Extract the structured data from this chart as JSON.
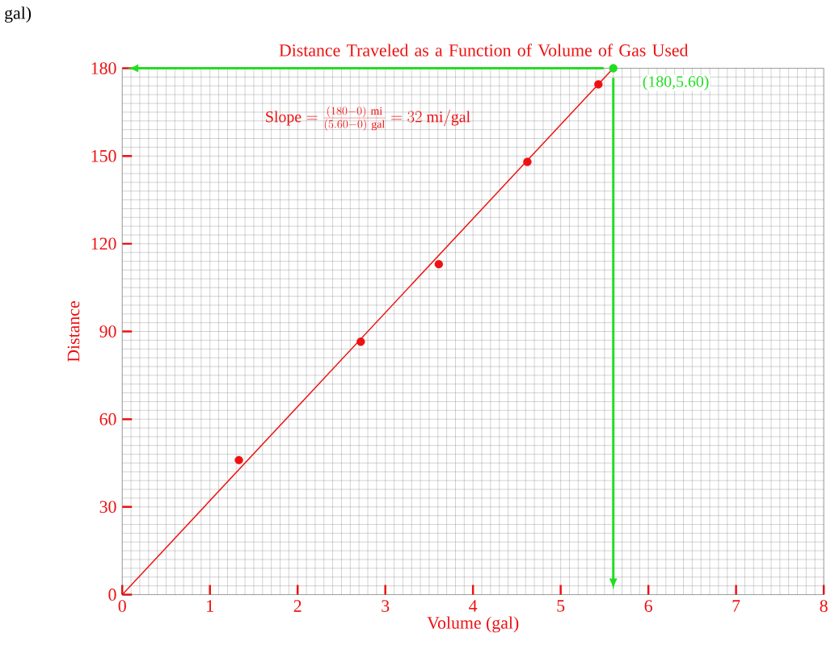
{
  "chart_data": {
    "type": "scatter",
    "title": "Distance Traveled  as a Function of Volume of Gas Used",
    "xlabel": "Volume (gal)",
    "ylabel": "Distance",
    "xlim": [
      0,
      8
    ],
    "xticks": [
      0,
      1,
      2,
      3,
      4,
      5,
      6,
      7,
      8
    ],
    "ylim": [
      0,
      180
    ],
    "yticks": [
      0,
      30,
      60,
      90,
      120,
      150,
      180
    ],
    "grid": true,
    "marker": "circle",
    "series": [
      {
        "color": "#ee1111",
        "x": [
          1.33,
          2.72,
          3.61,
          4.62,
          5.43
        ],
        "values": [
          46,
          86.5,
          113,
          148,
          174.5
        ]
      },
      {
        "type": "line",
        "color": "#ee1111",
        "marker": "none",
        "x": [
          0,
          5.6
        ],
        "values": [
          0,
          180
        ]
      },
      {
        "color": "#22dd22",
        "x": [
          5.6
        ],
        "values": [
          180
        ]
      }
    ],
    "ref_lines": [
      {
        "axis": "y",
        "value": 180,
        "color": "#22dd22"
      },
      {
        "axis": "x",
        "value": 5.6,
        "color": "#22dd22"
      }
    ],
    "annotations": [
      "\\mathrm{Slope} = \\frac{(180-0)\\ \\mathrm{mi}}{(5.60-0)\\ \\mathrm{gal}} = 32\\ \\mathrm{mi/gal}",
      {
        "text": "(180,5.60)",
        "x": 5.6,
        "y": 180
      },
      "gal)"
    ]
  }
}
